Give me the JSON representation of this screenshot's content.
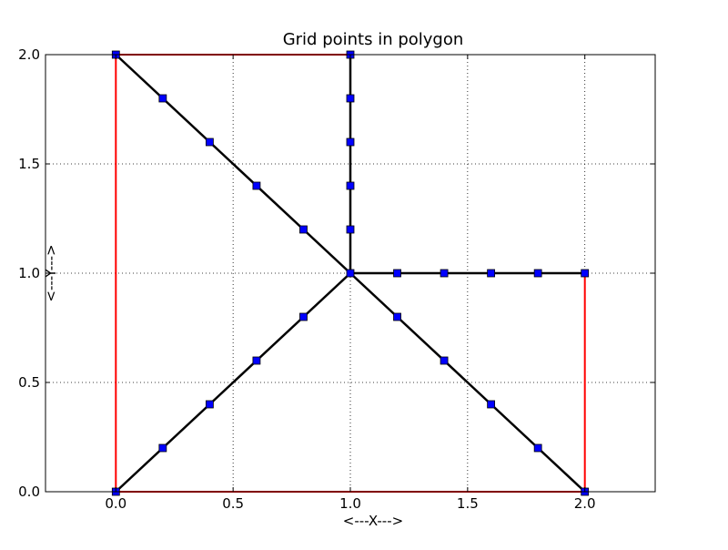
{
  "chart_data": {
    "type": "line",
    "title": "Grid points in polygon",
    "xlabel": "<---X--->",
    "ylabel": "<---Y--->",
    "xlim": [
      -0.3,
      2.3
    ],
    "ylim": [
      0.0,
      2.0
    ],
    "xticks": [
      "0.0",
      "0.5",
      "1.0",
      "1.5",
      "2.0"
    ],
    "yticks": [
      "0.0",
      "0.5",
      "1.0",
      "1.5",
      "2.0"
    ],
    "grid": true,
    "polygon": {
      "color": "#ff0000",
      "points": [
        [
          0,
          0
        ],
        [
          2,
          0
        ],
        [
          2,
          1
        ],
        [
          1,
          1
        ],
        [
          1,
          2
        ],
        [
          0,
          2
        ],
        [
          0,
          0
        ]
      ]
    },
    "lines": {
      "color": "#000000",
      "segments": [
        [
          [
            0,
            2
          ],
          [
            2,
            0
          ]
        ],
        [
          [
            0,
            0
          ],
          [
            1,
            1
          ]
        ],
        [
          [
            1,
            1
          ],
          [
            2,
            1
          ]
        ],
        [
          [
            1,
            1
          ],
          [
            1,
            2
          ]
        ]
      ]
    },
    "points": {
      "color": "#0000ff",
      "marker": "square",
      "values": [
        [
          0,
          2
        ],
        [
          0.2,
          1.8
        ],
        [
          0.4,
          1.6
        ],
        [
          0.6,
          1.4
        ],
        [
          0.8,
          1.2
        ],
        [
          1,
          1
        ],
        [
          1.2,
          0.8
        ],
        [
          1.4,
          0.6
        ],
        [
          1.6,
          0.4
        ],
        [
          1.8,
          0.2
        ],
        [
          2,
          0
        ],
        [
          0,
          0
        ],
        [
          0.2,
          0.2
        ],
        [
          0.4,
          0.4
        ],
        [
          0.6,
          0.6
        ],
        [
          0.8,
          0.8
        ],
        [
          1.2,
          1
        ],
        [
          1.4,
          1
        ],
        [
          1.6,
          1
        ],
        [
          1.8,
          1
        ],
        [
          2,
          1
        ],
        [
          1,
          1.2
        ],
        [
          1,
          1.4
        ],
        [
          1,
          1.6
        ],
        [
          1,
          1.8
        ],
        [
          1,
          2
        ]
      ]
    }
  }
}
